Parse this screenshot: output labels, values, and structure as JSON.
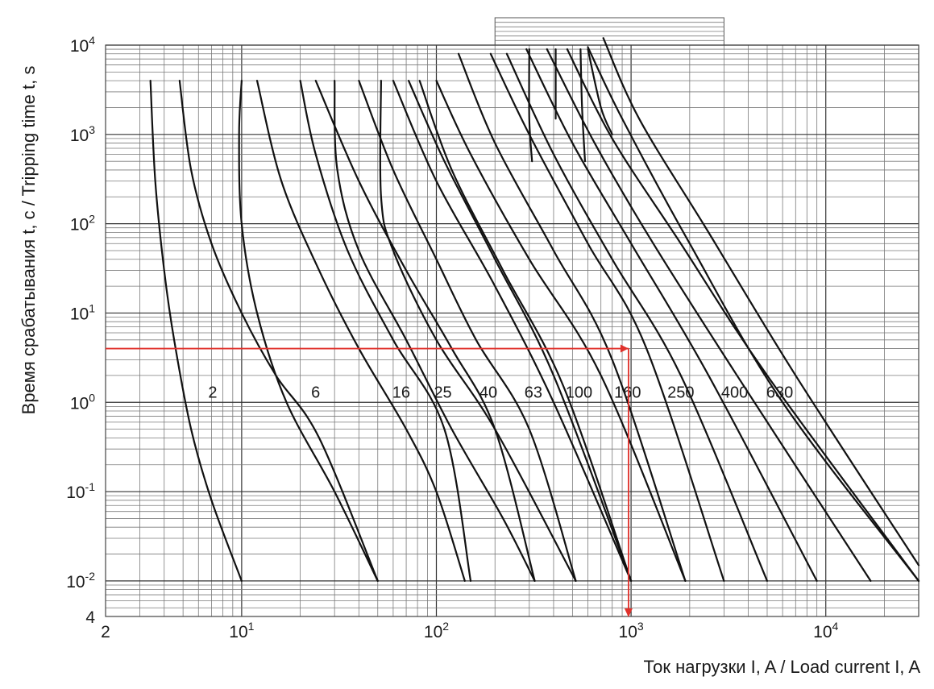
{
  "chart_data": {
    "type": "line",
    "x_scale": "log",
    "y_scale": "log",
    "xlim": [
      2,
      30000
    ],
    "ylim": [
      0.004,
      10000
    ],
    "grid": true,
    "x_ticks": [
      {
        "value": 2,
        "label": "2",
        "exp": ""
      },
      {
        "value": 10,
        "label": "10",
        "exp": "1"
      },
      {
        "value": 100,
        "label": "10",
        "exp": "2"
      },
      {
        "value": 1000,
        "label": "10",
        "exp": "3"
      },
      {
        "value": 10000,
        "label": "10",
        "exp": "4"
      }
    ],
    "y_ticks": [
      {
        "value": 0.004,
        "label": "4",
        "exp": ""
      },
      {
        "value": 0.01,
        "label": "10",
        "exp": "-2"
      },
      {
        "value": 0.1,
        "label": "10",
        "exp": "-1"
      },
      {
        "value": 1,
        "label": "10",
        "exp": "0"
      },
      {
        "value": 10,
        "label": "10",
        "exp": "1"
      },
      {
        "value": 100,
        "label": "10",
        "exp": "2"
      },
      {
        "value": 1000,
        "label": "10",
        "exp": "3"
      },
      {
        "value": 10000,
        "label": "10",
        "exp": "4"
      }
    ],
    "ylabel": "Время срабатывания  t, c / Tripping time t, s",
    "xlabel": "Ток нагрузки I, A / Load current I, A",
    "curve_labels": [
      {
        "text": "2",
        "x": 7.1,
        "y": 1.3
      },
      {
        "text": "6",
        "x": 24,
        "y": 1.3
      },
      {
        "text": "16",
        "x": 66,
        "y": 1.3
      },
      {
        "text": "25",
        "x": 108,
        "y": 1.3
      },
      {
        "text": "40",
        "x": 185,
        "y": 1.3
      },
      {
        "text": "63",
        "x": 315,
        "y": 1.3
      },
      {
        "text": "100",
        "x": 540,
        "y": 1.3
      },
      {
        "text": "160",
        "x": 960,
        "y": 1.3
      },
      {
        "text": "250",
        "x": 1800,
        "y": 1.3
      },
      {
        "text": "400",
        "x": 3400,
        "y": 1.3
      },
      {
        "text": "630",
        "x": 5800,
        "y": 1.3
      }
    ],
    "series": [
      {
        "points": [
          [
            3.4,
            4000
          ],
          [
            3.6,
            300
          ],
          [
            4,
            30
          ],
          [
            4.5,
            5
          ],
          [
            5.5,
            0.5
          ],
          [
            7,
            0.08
          ],
          [
            10,
            0.01
          ]
        ]
      },
      {
        "points": [
          [
            4.8,
            4000
          ],
          [
            5.5,
            400
          ],
          [
            7,
            60
          ],
          [
            10,
            10
          ],
          [
            15,
            2
          ],
          [
            25,
            0.4
          ],
          [
            50,
            0.01
          ]
        ]
      },
      {
        "points": [
          [
            10,
            4000
          ],
          [
            9.7,
            1000
          ],
          [
            10,
            100
          ],
          [
            12,
            10
          ],
          [
            17,
            1
          ],
          [
            30,
            0.1
          ],
          [
            50,
            0.01
          ]
        ]
      },
      {
        "points": [
          [
            12,
            4000
          ],
          [
            16,
            300
          ],
          [
            25,
            30
          ],
          [
            40,
            4
          ],
          [
            70,
            0.5
          ],
          [
            100,
            0.1
          ],
          [
            140,
            0.01
          ]
        ]
      },
      {
        "points": [
          [
            20,
            4000
          ],
          [
            24,
            600
          ],
          [
            35,
            50
          ],
          [
            60,
            5
          ],
          [
            110,
            0.5
          ],
          [
            150,
            0.01
          ]
        ]
      },
      {
        "points": [
          [
            24,
            4000
          ],
          [
            40,
            300
          ],
          [
            70,
            30
          ],
          [
            120,
            4
          ],
          [
            200,
            0.5
          ],
          [
            320,
            0.01
          ]
        ]
      },
      {
        "points": [
          [
            30,
            4000
          ],
          [
            31,
            400
          ],
          [
            40,
            50
          ],
          [
            70,
            5
          ],
          [
            120,
            0.5
          ],
          [
            220,
            0.05
          ],
          [
            320,
            0.01
          ]
        ]
      },
      {
        "points": [
          [
            40,
            4000
          ],
          [
            60,
            400
          ],
          [
            100,
            40
          ],
          [
            160,
            5
          ],
          [
            300,
            0.5
          ],
          [
            520,
            0.01
          ]
        ]
      },
      {
        "points": [
          [
            52,
            4000
          ],
          [
            52,
            200
          ],
          [
            60,
            50
          ],
          [
            100,
            5
          ],
          [
            200,
            0.5
          ],
          [
            520,
            0.01
          ]
        ]
      },
      {
        "points": [
          [
            60,
            4000
          ],
          [
            100,
            300
          ],
          [
            200,
            20
          ],
          [
            400,
            1
          ],
          [
            1000,
            0.01
          ]
        ]
      },
      {
        "points": [
          [
            72,
            4000
          ],
          [
            110,
            500
          ],
          [
            200,
            40
          ],
          [
            400,
            2
          ],
          [
            1000,
            0.01
          ]
        ]
      },
      {
        "points": [
          [
            82,
            4000
          ],
          [
            120,
            400
          ],
          [
            220,
            30
          ],
          [
            450,
            1.5
          ],
          [
            1000,
            0.01
          ]
        ]
      },
      {
        "points": [
          [
            100,
            4000
          ],
          [
            150,
            600
          ],
          [
            300,
            40
          ],
          [
            700,
            2
          ],
          [
            1900,
            0.01
          ]
        ]
      },
      {
        "points": [
          [
            130,
            8000
          ],
          [
            200,
            800
          ],
          [
            400,
            50
          ],
          [
            800,
            3
          ],
          [
            1900,
            0.01
          ]
        ]
      },
      {
        "points": [
          [
            190,
            8000
          ],
          [
            300,
            1000
          ],
          [
            600,
            60
          ],
          [
            1200,
            4
          ],
          [
            3000,
            0.01
          ]
        ]
      },
      {
        "points": [
          [
            230,
            8000
          ],
          [
            400,
            600
          ],
          [
            800,
            40
          ],
          [
            1800,
            2
          ],
          [
            5000,
            0.01
          ]
        ]
      },
      {
        "points": [
          [
            290,
            9000
          ],
          [
            500,
            800
          ],
          [
            1000,
            60
          ],
          [
            2500,
            2
          ],
          [
            9000,
            0.01
          ]
        ]
      },
      {
        "points": [
          [
            370,
            9000
          ],
          [
            650,
            800
          ],
          [
            1300,
            60
          ],
          [
            3500,
            2
          ],
          [
            17000,
            0.01
          ]
        ]
      },
      {
        "points": [
          [
            470,
            9000
          ],
          [
            800,
            900
          ],
          [
            1800,
            60
          ],
          [
            5000,
            2
          ],
          [
            30000,
            0.01
          ]
        ]
      },
      {
        "points": [
          [
            600,
            9500
          ],
          [
            900,
            1500
          ],
          [
            2000,
            60
          ],
          [
            6000,
            1
          ],
          [
            30000,
            0.01
          ]
        ]
      },
      {
        "points": [
          [
            720,
            12000
          ],
          [
            1100,
            1500
          ],
          [
            2500,
            80
          ],
          [
            7000,
            2
          ],
          [
            30000,
            0.015
          ]
        ]
      }
    ],
    "series_extra": [
      {
        "points": [
          [
            550,
            9000
          ],
          [
            560,
            2000
          ],
          [
            580,
            500
          ]
        ]
      },
      {
        "points": [
          [
            410,
            9000
          ],
          [
            410,
            1500
          ]
        ]
      },
      {
        "points": [
          [
            300,
            9000
          ],
          [
            300,
            1500
          ],
          [
            310,
            500
          ]
        ]
      },
      {
        "points": [
          [
            600,
            9000
          ],
          [
            700,
            2000
          ],
          [
            800,
            1000
          ]
        ]
      }
    ],
    "example": {
      "color": "#e0312b",
      "t_marker": 4,
      "current_marker": 970
    },
    "top_grid_box": {
      "x": [
        200,
        3000
      ],
      "y": [
        10000,
        20000
      ]
    }
  }
}
